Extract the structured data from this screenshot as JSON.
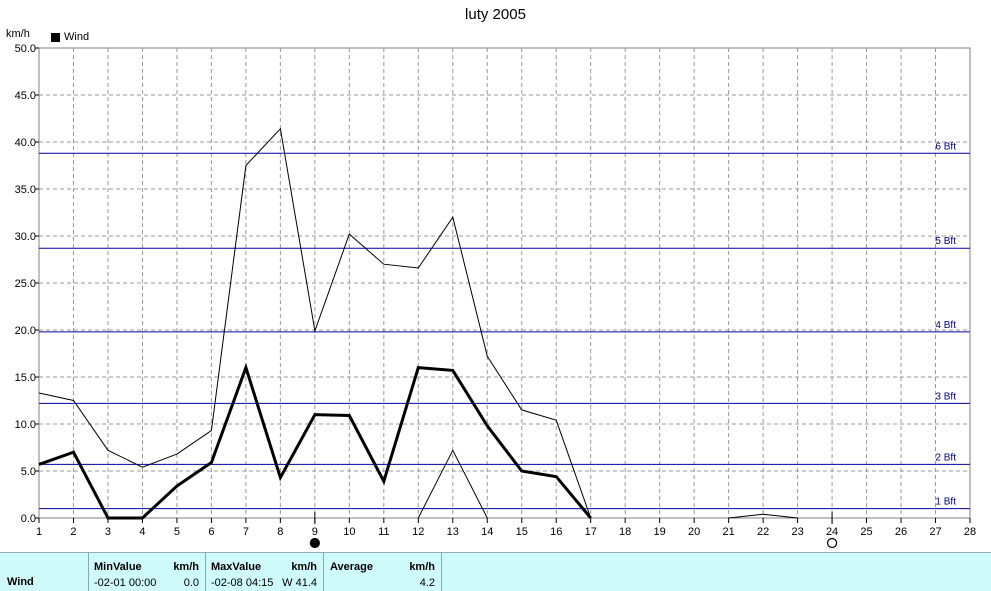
{
  "title": "luty 2005",
  "unit_label": "km/h",
  "legend_label": "Wind",
  "chart_data": {
    "type": "line",
    "title": "luty 2005",
    "ylabel": "km/h",
    "xlabel": "",
    "x": [
      1,
      2,
      3,
      4,
      5,
      6,
      7,
      8,
      9,
      10,
      11,
      12,
      13,
      14,
      15,
      16,
      17,
      18,
      19,
      20,
      21,
      22,
      23,
      24,
      25,
      26,
      27,
      28
    ],
    "xlim": [
      1,
      28
    ],
    "ylim": [
      0,
      50
    ],
    "y_ticks": [
      "0.0",
      "5.0",
      "10.0",
      "15.0",
      "20.0",
      "25.0",
      "30.0",
      "35.0",
      "40.0",
      "45.0",
      "50.0"
    ],
    "grid": true,
    "legend_position": "top-left",
    "series": [
      {
        "name": "Wind",
        "style": "bold",
        "points": [
          [
            1,
            5.7
          ],
          [
            2,
            7.0
          ],
          [
            3,
            0.0
          ],
          [
            4,
            0.0
          ],
          [
            5,
            3.4
          ],
          [
            6,
            5.9
          ],
          [
            7,
            16.0
          ],
          [
            8,
            4.3
          ],
          [
            9,
            11.0
          ],
          [
            10,
            10.9
          ],
          [
            11,
            3.9
          ],
          [
            12,
            16.0
          ],
          [
            13,
            15.7
          ],
          [
            14,
            9.8
          ],
          [
            15,
            5.0
          ],
          [
            16,
            4.4
          ],
          [
            17,
            0.0
          ]
        ]
      },
      {
        "name": "",
        "style": "thin",
        "points": [
          [
            1,
            13.3
          ],
          [
            2,
            12.5
          ],
          [
            3,
            7.2
          ],
          [
            4,
            5.4
          ],
          [
            5,
            6.8
          ],
          [
            6,
            9.3
          ],
          [
            7,
            37.5
          ],
          [
            8,
            41.4
          ],
          [
            9,
            19.9
          ],
          [
            10,
            30.2
          ],
          [
            11,
            27.0
          ],
          [
            12,
            26.6
          ],
          [
            13,
            32.0
          ],
          [
            14,
            17.2
          ],
          [
            15,
            11.5
          ],
          [
            16,
            10.4
          ],
          [
            17,
            0.0
          ]
        ]
      },
      {
        "name": "",
        "style": "thin",
        "points": [
          [
            12,
            0.0
          ],
          [
            13,
            7.2
          ],
          [
            14,
            0.0
          ]
        ]
      },
      {
        "name": "",
        "style": "thin",
        "points": [
          [
            21,
            0.0
          ],
          [
            22,
            0.4
          ],
          [
            23,
            0.0
          ]
        ]
      }
    ],
    "beaufort_lines": [
      {
        "label": "1 Bft",
        "value": 1.0
      },
      {
        "label": "2 Bft",
        "value": 5.7
      },
      {
        "label": "3 Bft",
        "value": 12.2
      },
      {
        "label": "4 Bft",
        "value": 19.8
      },
      {
        "label": "5 Bft",
        "value": 28.7
      },
      {
        "label": "6 Bft",
        "value": 38.8
      }
    ],
    "markers": [
      {
        "x": 9,
        "kind": "filled-circle"
      },
      {
        "x": 24,
        "kind": "open-circle"
      }
    ],
    "colors": {
      "bft_line": "#0000aa",
      "bft_label": "#000080",
      "data": "#000000",
      "grid": "#999999"
    }
  },
  "stats": {
    "row_label": "Wind",
    "min_header": "MinValue",
    "min_unit": "km/h",
    "min_time": "-02-01  00:00",
    "min_value": "0.0",
    "max_header": "MaxValue",
    "max_unit": "km/h",
    "max_time": "-02-08  04:15",
    "max_value": "W 41.4",
    "avg_header": "Average",
    "avg_unit": "km/h",
    "avg_value": "4.2"
  }
}
